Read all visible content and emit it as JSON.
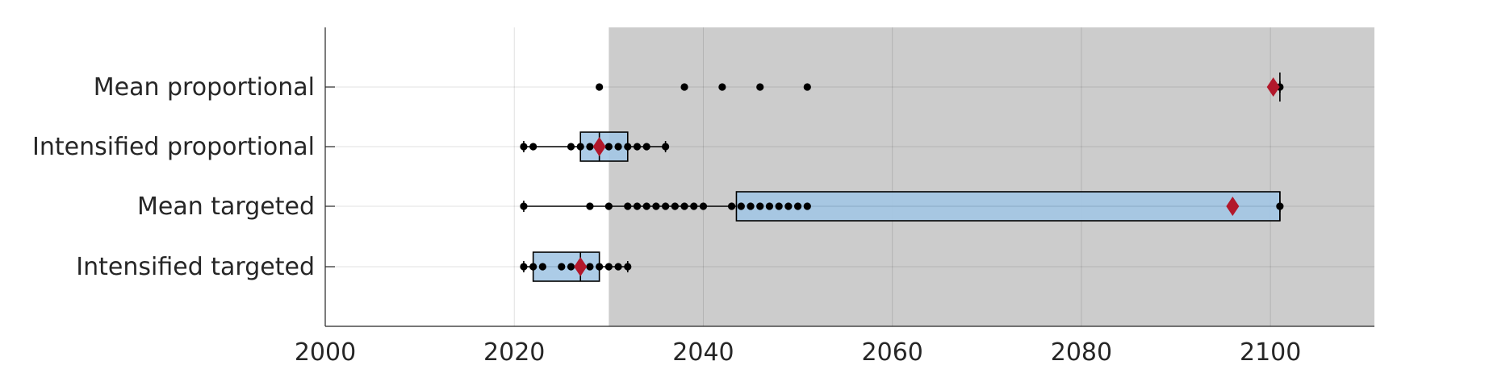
{
  "chart_data": {
    "type": "boxplot",
    "title": "",
    "xlabel": "",
    "ylabel": "",
    "xlim": [
      2000,
      2111
    ],
    "x_ticks": [
      2000,
      2020,
      2040,
      2060,
      2080,
      2100
    ],
    "x_tick_labels": [
      "2000",
      "2020",
      "2040",
      "2060",
      "2080",
      "2100"
    ],
    "grid": true,
    "shaded_region": {
      "x_start": 2030,
      "x_end": 2111,
      "color": "#cccccc"
    },
    "colors": {
      "box_fill": "#a3c6e4",
      "mean_marker": "#b2182b",
      "point": "#000000",
      "axis": "#262626",
      "grid": "#d9d9d9"
    },
    "mean_marker_shape": "diamond",
    "categories": [
      "Mean proportional",
      "Intensified proportional",
      "Mean targeted",
      "Intensified targeted"
    ],
    "series": [
      {
        "category": "Mean proportional",
        "q1": 2101,
        "median": 2101,
        "q3": 2101,
        "whisker_low": 2101,
        "whisker_high": 2101,
        "mean": 2100.3,
        "points": [
          2029,
          2038,
          2042,
          2046,
          2051,
          2101
        ]
      },
      {
        "category": "Intensified proportional",
        "q1": 2027,
        "median": 2029,
        "q3": 2032,
        "whisker_low": 2021,
        "whisker_high": 2036,
        "mean": 2029,
        "points": [
          2021,
          2022,
          2026,
          2027,
          2028,
          2029,
          2030,
          2031,
          2032,
          2033,
          2034,
          2036
        ]
      },
      {
        "category": "Mean targeted",
        "q1": 2043.5,
        "median": 2101,
        "q3": 2101,
        "whisker_low": 2021,
        "whisker_high": 2101,
        "mean": 2096,
        "points": [
          2021,
          2028,
          2030,
          2032,
          2033,
          2034,
          2035,
          2036,
          2037,
          2038,
          2039,
          2040,
          2043,
          2044,
          2045,
          2046,
          2047,
          2048,
          2049,
          2050,
          2051,
          2101
        ]
      },
      {
        "category": "Intensified targeted",
        "q1": 2022,
        "median": 2027,
        "q3": 2029,
        "whisker_low": 2021,
        "whisker_high": 2032,
        "mean": 2027,
        "points": [
          2021,
          2022,
          2023,
          2025,
          2026,
          2027,
          2028,
          2029,
          2030,
          2031,
          2032
        ]
      }
    ]
  }
}
